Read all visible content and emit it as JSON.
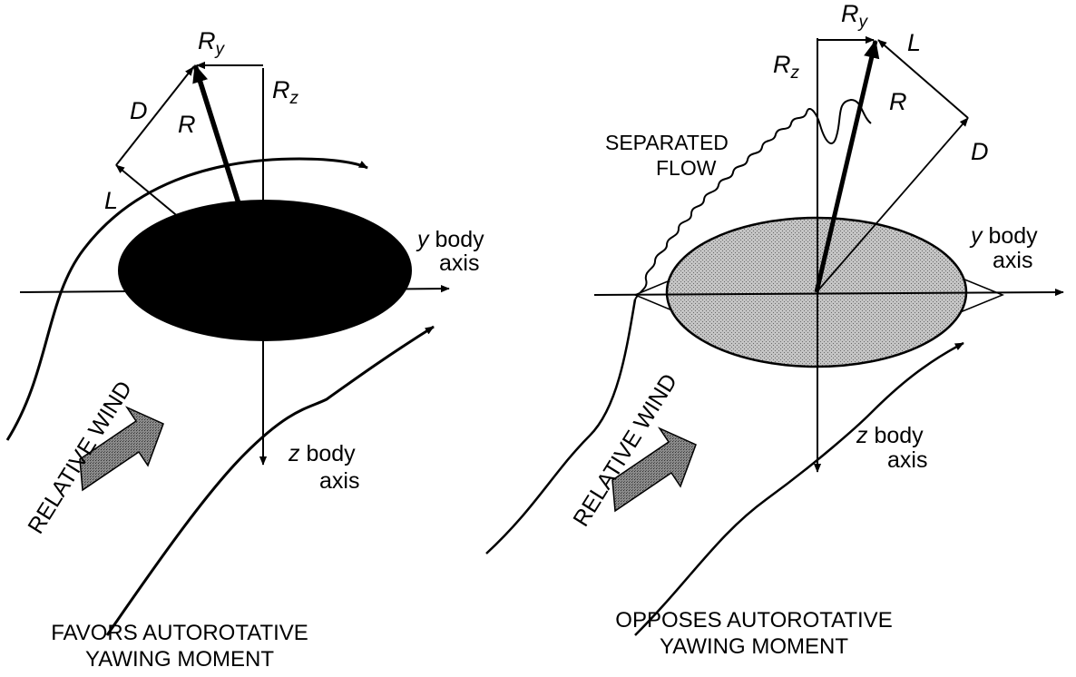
{
  "left_panel": {
    "vector_R": "R",
    "vector_Ry": "R",
    "vector_Ry_sub": "y",
    "vector_Rz": "R",
    "vector_Rz_sub": "z",
    "vector_D": "D",
    "vector_L": "L",
    "y_axis_var": "y",
    "y_axis_word1": "body",
    "y_axis_word2": "axis",
    "z_axis_var": "z",
    "z_axis_word1": "body",
    "z_axis_word2": "axis",
    "wind_label": "RELATIVE WIND",
    "caption_line1": "FAVORS AUTOROTATIVE",
    "caption_line2": "YAWING MOMENT"
  },
  "right_panel": {
    "vector_R": "R",
    "vector_Ry": "R",
    "vector_Ry_sub": "y",
    "vector_Rz": "R",
    "vector_Rz_sub": "z",
    "vector_D": "D",
    "vector_L": "L",
    "flow_line1": "SEPARATED",
    "flow_line2": "FLOW",
    "y_axis_var": "y",
    "y_axis_word1": "body",
    "y_axis_word2": "axis",
    "z_axis_var": "z",
    "z_axis_word1": "body",
    "z_axis_word2": "axis",
    "wind_label": "RELATIVE WIND",
    "caption_line1": "OPPOSES AUTOROTATIVE",
    "caption_line2": "YAWING MOMENT"
  },
  "colors": {
    "ink": "#000000",
    "body_left_fill": "#000000",
    "body_right_fill": "#b5b5b5",
    "wind_arrow_fill": "#7a7a7a"
  }
}
